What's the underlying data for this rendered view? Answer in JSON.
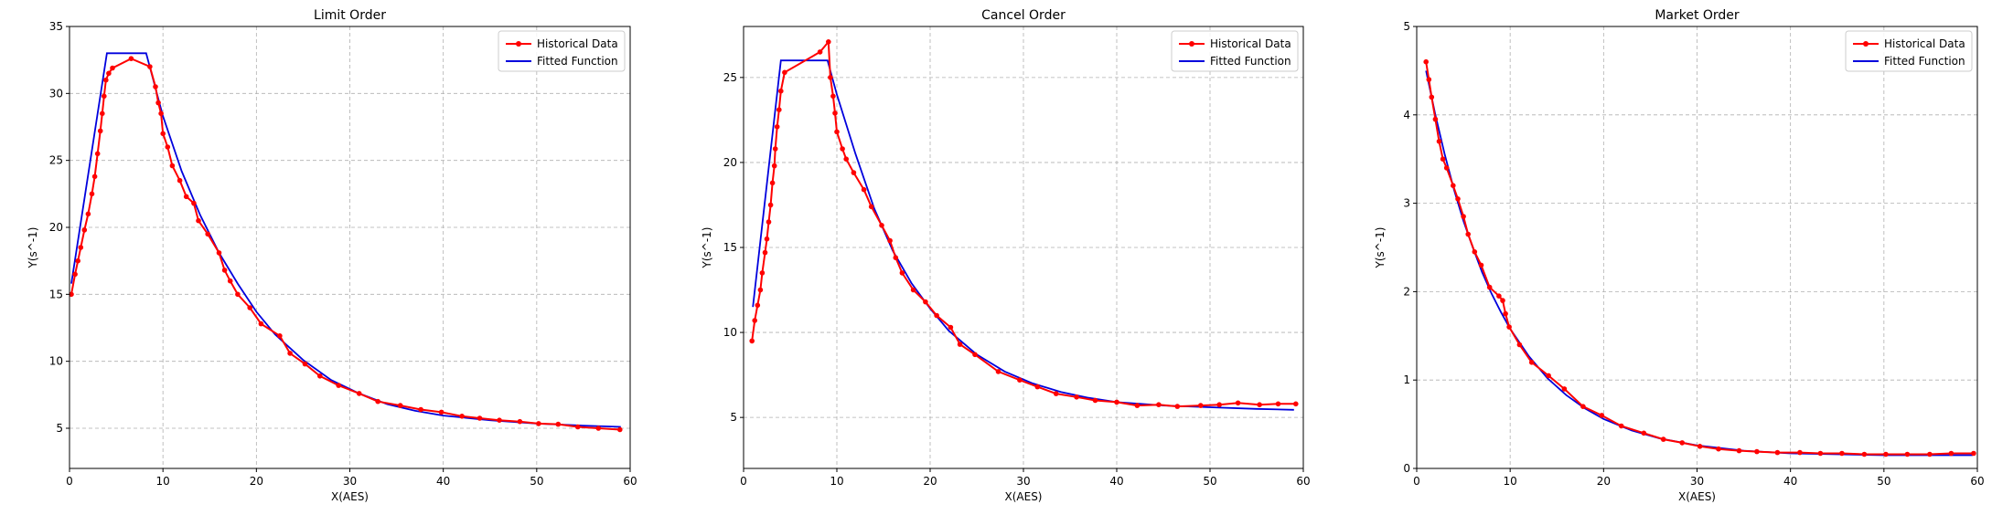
{
  "colors": {
    "historical": "#ff0000",
    "fitted": "#0000dd",
    "grid": "#b0b0b0"
  },
  "legend": {
    "placement": "top-right",
    "historical_label": "Historical Data",
    "fitted_label": "Fitted Function"
  },
  "chart_data": [
    {
      "type": "line",
      "title": "Limit Order",
      "xlabel": "X(AES)",
      "ylabel": "Y(s^-1)",
      "xlim": [
        0,
        60
      ],
      "ylim": [
        2,
        35
      ],
      "xticks": [
        0,
        10,
        20,
        30,
        40,
        50,
        60
      ],
      "yticks": [
        5,
        10,
        15,
        20,
        25,
        30,
        35
      ],
      "grid": true,
      "series": [
        {
          "name": "Historical Data",
          "marker": "circle",
          "points": [
            [
              0.2,
              15.0
            ],
            [
              0.6,
              16.5
            ],
            [
              0.9,
              17.5
            ],
            [
              1.2,
              18.5
            ],
            [
              1.6,
              19.8
            ],
            [
              2.0,
              21.0
            ],
            [
              2.4,
              22.5
            ],
            [
              2.7,
              23.8
            ],
            [
              3.0,
              25.5
            ],
            [
              3.3,
              27.2
            ],
            [
              3.5,
              28.5
            ],
            [
              3.7,
              29.8
            ],
            [
              3.9,
              31.0
            ],
            [
              4.2,
              31.5
            ],
            [
              4.6,
              31.9
            ],
            [
              6.6,
              32.6
            ],
            [
              8.6,
              32.0
            ],
            [
              9.2,
              30.5
            ],
            [
              9.5,
              29.3
            ],
            [
              9.8,
              28.5
            ],
            [
              10.0,
              27.0
            ],
            [
              10.5,
              26.0
            ],
            [
              11.0,
              24.6
            ],
            [
              11.8,
              23.5
            ],
            [
              12.5,
              22.3
            ],
            [
              13.3,
              21.8
            ],
            [
              13.8,
              20.5
            ],
            [
              14.8,
              19.5
            ],
            [
              16.0,
              18.1
            ],
            [
              16.6,
              16.8
            ],
            [
              17.2,
              16.0
            ],
            [
              18.0,
              15.0
            ],
            [
              19.3,
              14.0
            ],
            [
              20.5,
              12.8
            ],
            [
              22.5,
              11.9
            ],
            [
              23.6,
              10.6
            ],
            [
              25.2,
              9.8
            ],
            [
              26.8,
              8.9
            ],
            [
              28.8,
              8.2
            ],
            [
              31.0,
              7.6
            ],
            [
              33.0,
              7.0
            ],
            [
              35.4,
              6.7
            ],
            [
              37.6,
              6.4
            ],
            [
              39.8,
              6.2
            ],
            [
              42.0,
              5.9
            ],
            [
              43.9,
              5.75
            ],
            [
              46.0,
              5.6
            ],
            [
              48.2,
              5.5
            ],
            [
              50.2,
              5.35
            ],
            [
              52.3,
              5.3
            ],
            [
              54.4,
              5.1
            ],
            [
              56.6,
              5.0
            ],
            [
              58.9,
              4.9
            ]
          ]
        },
        {
          "name": "Fitted Function",
          "points": [
            [
              0.2,
              15.8
            ],
            [
              4.0,
              33.0
            ],
            [
              8.2,
              33.0
            ],
            [
              10.0,
              28.3
            ],
            [
              12.0,
              24.2
            ],
            [
              14.0,
              20.9
            ],
            [
              16.0,
              18.1
            ],
            [
              18.0,
              15.8
            ],
            [
              20.0,
              13.7
            ],
            [
              22.0,
              12.0
            ],
            [
              25.0,
              10.1
            ],
            [
              28.0,
              8.6
            ],
            [
              31.0,
              7.6
            ],
            [
              34.0,
              6.8
            ],
            [
              37.0,
              6.3
            ],
            [
              40.0,
              5.95
            ],
            [
              45.0,
              5.6
            ],
            [
              50.0,
              5.35
            ],
            [
              55.0,
              5.2
            ],
            [
              59.0,
              5.1
            ]
          ]
        }
      ]
    },
    {
      "type": "line",
      "title": "Cancel Order",
      "xlabel": "X(AES)",
      "ylabel": "Y(s^-1)",
      "xlim": [
        0,
        60
      ],
      "ylim": [
        2,
        28
      ],
      "xticks": [
        0,
        10,
        20,
        30,
        40,
        50,
        60
      ],
      "yticks": [
        5,
        10,
        15,
        20,
        25
      ],
      "grid": true,
      "series": [
        {
          "name": "Historical Data",
          "marker": "circle",
          "points": [
            [
              0.9,
              9.5
            ],
            [
              1.2,
              10.7
            ],
            [
              1.5,
              11.6
            ],
            [
              1.8,
              12.5
            ],
            [
              2.0,
              13.5
            ],
            [
              2.3,
              14.7
            ],
            [
              2.5,
              15.5
            ],
            [
              2.7,
              16.5
            ],
            [
              2.9,
              17.5
            ],
            [
              3.1,
              18.8
            ],
            [
              3.3,
              19.8
            ],
            [
              3.4,
              20.8
            ],
            [
              3.6,
              22.1
            ],
            [
              3.8,
              23.1
            ],
            [
              4.0,
              24.2
            ],
            [
              4.4,
              25.3
            ],
            [
              8.2,
              26.5
            ],
            [
              9.1,
              27.1
            ],
            [
              9.3,
              25.0
            ],
            [
              9.6,
              23.9
            ],
            [
              9.8,
              22.9
            ],
            [
              10.0,
              21.8
            ],
            [
              10.6,
              20.8
            ],
            [
              11.0,
              20.2
            ],
            [
              11.8,
              19.4
            ],
            [
              12.9,
              18.4
            ],
            [
              13.7,
              17.4
            ],
            [
              14.8,
              16.3
            ],
            [
              15.7,
              15.4
            ],
            [
              16.3,
              14.4
            ],
            [
              17.0,
              13.5
            ],
            [
              18.2,
              12.5
            ],
            [
              19.5,
              11.8
            ],
            [
              20.7,
              11.0
            ],
            [
              22.2,
              10.3
            ],
            [
              23.2,
              9.3
            ],
            [
              24.8,
              8.7
            ],
            [
              27.3,
              7.7
            ],
            [
              29.6,
              7.2
            ],
            [
              31.5,
              6.8
            ],
            [
              33.5,
              6.4
            ],
            [
              35.7,
              6.2
            ],
            [
              37.7,
              6.0
            ],
            [
              40.0,
              5.9
            ],
            [
              42.2,
              5.7
            ],
            [
              44.5,
              5.75
            ],
            [
              46.5,
              5.65
            ],
            [
              49.0,
              5.7
            ],
            [
              51.0,
              5.75
            ],
            [
              53.0,
              5.85
            ],
            [
              55.3,
              5.75
            ],
            [
              57.3,
              5.8
            ],
            [
              59.2,
              5.8
            ]
          ]
        },
        {
          "name": "Fitted Function",
          "points": [
            [
              1.0,
              11.5
            ],
            [
              4.0,
              26.0
            ],
            [
              9.0,
              26.0
            ],
            [
              10.0,
              24.0
            ],
            [
              12.0,
              20.5
            ],
            [
              14.0,
              17.3
            ],
            [
              16.0,
              14.8
            ],
            [
              18.0,
              12.9
            ],
            [
              20.0,
              11.4
            ],
            [
              22.0,
              10.1
            ],
            [
              25.0,
              8.7
            ],
            [
              28.0,
              7.7
            ],
            [
              31.0,
              7.0
            ],
            [
              34.0,
              6.5
            ],
            [
              37.0,
              6.15
            ],
            [
              40.0,
              5.9
            ],
            [
              45.0,
              5.7
            ],
            [
              50.0,
              5.6
            ],
            [
              55.0,
              5.5
            ],
            [
              59.0,
              5.45
            ]
          ]
        }
      ]
    },
    {
      "type": "line",
      "title": "Market Order",
      "xlabel": "X(AES)",
      "ylabel": "Y(s^-1)",
      "xlim": [
        0,
        60
      ],
      "ylim": [
        0,
        5
      ],
      "xticks": [
        0,
        10,
        20,
        30,
        40,
        50,
        60
      ],
      "yticks": [
        0,
        1,
        2,
        3,
        4,
        5
      ],
      "grid": true,
      "series": [
        {
          "name": "Historical Data",
          "marker": "circle",
          "points": [
            [
              1.0,
              4.6
            ],
            [
              1.3,
              4.4
            ],
            [
              1.6,
              4.2
            ],
            [
              2.0,
              3.95
            ],
            [
              2.4,
              3.7
            ],
            [
              2.8,
              3.5
            ],
            [
              3.2,
              3.4
            ],
            [
              3.9,
              3.2
            ],
            [
              4.4,
              3.05
            ],
            [
              5.0,
              2.85
            ],
            [
              5.5,
              2.65
            ],
            [
              6.2,
              2.45
            ],
            [
              6.9,
              2.3
            ],
            [
              7.8,
              2.05
            ],
            [
              8.8,
              1.95
            ],
            [
              9.2,
              1.9
            ],
            [
              9.5,
              1.75
            ],
            [
              9.9,
              1.6
            ],
            [
              11.0,
              1.4
            ],
            [
              12.3,
              1.2
            ],
            [
              14.1,
              1.05
            ],
            [
              15.8,
              0.9
            ],
            [
              17.8,
              0.7
            ],
            [
              19.8,
              0.6
            ],
            [
              21.9,
              0.48
            ],
            [
              24.3,
              0.4
            ],
            [
              26.4,
              0.33
            ],
            [
              28.4,
              0.29
            ],
            [
              30.3,
              0.25
            ],
            [
              32.3,
              0.22
            ],
            [
              34.5,
              0.2
            ],
            [
              36.4,
              0.19
            ],
            [
              38.6,
              0.18
            ],
            [
              41.0,
              0.18
            ],
            [
              43.2,
              0.17
            ],
            [
              45.5,
              0.17
            ],
            [
              47.9,
              0.16
            ],
            [
              50.2,
              0.16
            ],
            [
              52.5,
              0.16
            ],
            [
              54.9,
              0.16
            ],
            [
              57.2,
              0.17
            ],
            [
              59.6,
              0.17
            ]
          ]
        },
        {
          "name": "Fitted Function",
          "points": [
            [
              1.0,
              4.5
            ],
            [
              2.0,
              4.0
            ],
            [
              3.0,
              3.55
            ],
            [
              4.0,
              3.15
            ],
            [
              5.0,
              2.8
            ],
            [
              6.0,
              2.5
            ],
            [
              7.0,
              2.22
            ],
            [
              8.0,
              1.98
            ],
            [
              9.0,
              1.77
            ],
            [
              10.0,
              1.58
            ],
            [
              12.0,
              1.27
            ],
            [
              14.0,
              1.02
            ],
            [
              16.0,
              0.83
            ],
            [
              18.0,
              0.68
            ],
            [
              20.0,
              0.56
            ],
            [
              23.0,
              0.43
            ],
            [
              26.0,
              0.34
            ],
            [
              30.0,
              0.26
            ],
            [
              35.0,
              0.2
            ],
            [
              40.0,
              0.17
            ],
            [
              45.0,
              0.16
            ],
            [
              50.0,
              0.15
            ],
            [
              55.0,
              0.15
            ],
            [
              59.5,
              0.15
            ]
          ]
        }
      ]
    }
  ]
}
